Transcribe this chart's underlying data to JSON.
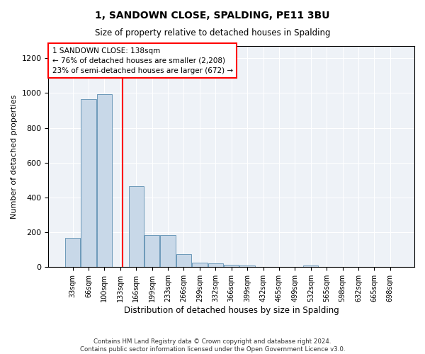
{
  "title": "1, SANDOWN CLOSE, SPALDING, PE11 3BU",
  "subtitle": "Size of property relative to detached houses in Spalding",
  "xlabel": "Distribution of detached houses by size in Spalding",
  "ylabel": "Number of detached properties",
  "bar_color": "#c8d8e8",
  "bar_edge_color": "#5b8db0",
  "categories": [
    "33sqm",
    "66sqm",
    "100sqm",
    "133sqm",
    "166sqm",
    "199sqm",
    "233sqm",
    "266sqm",
    "299sqm",
    "332sqm",
    "366sqm",
    "399sqm",
    "432sqm",
    "465sqm",
    "499sqm",
    "532sqm",
    "565sqm",
    "598sqm",
    "632sqm",
    "665sqm",
    "698sqm"
  ],
  "values": [
    170,
    965,
    995,
    0,
    465,
    185,
    185,
    75,
    25,
    20,
    15,
    10,
    0,
    0,
    0,
    10,
    0,
    0,
    0,
    0,
    0
  ],
  "property_line_bin_index": 3.15,
  "annotation_text": "1 SANDOWN CLOSE: 138sqm\n← 76% of detached houses are smaller (2,208)\n23% of semi-detached houses are larger (672) →",
  "annotation_box_color": "white",
  "annotation_box_edge_color": "red",
  "line_color": "red",
  "ylim": [
    0,
    1270
  ],
  "yticks": [
    0,
    200,
    400,
    600,
    800,
    1000,
    1200
  ],
  "footnote": "Contains HM Land Registry data © Crown copyright and database right 2024.\nContains public sector information licensed under the Open Government Licence v3.0.",
  "background_color": "#eef2f7"
}
